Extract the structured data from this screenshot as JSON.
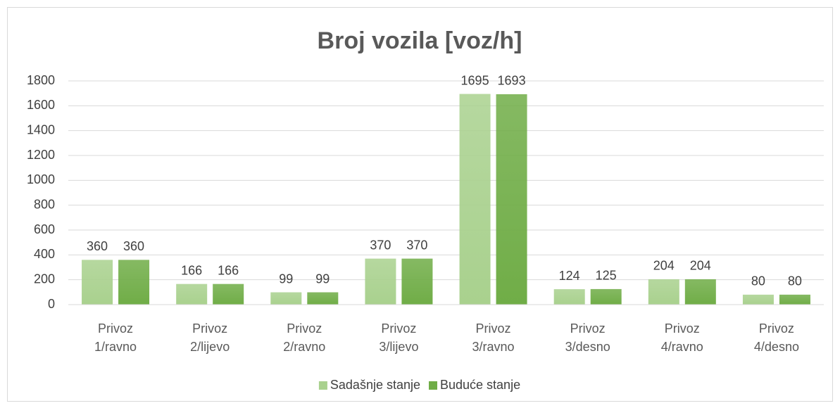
{
  "chart_data": {
    "type": "bar",
    "title": "Broj vozila [voz/h]",
    "categories": [
      "Privoz 1/ravno",
      "Privoz 2/lijevo",
      "Privoz 2/ravno",
      "Privoz 3/lijevo",
      "Privoz 3/ravno",
      "Privoz 3/desno",
      "Privoz 4/ravno",
      "Privoz 4/desno"
    ],
    "series": [
      {
        "name": "Sadašnje stanje",
        "color": "#a9d18e",
        "values": [
          360,
          166,
          99,
          370,
          1695,
          124,
          204,
          80
        ]
      },
      {
        "name": "Buduće stanje",
        "color": "#70ad47",
        "values": [
          360,
          166,
          99,
          370,
          1693,
          125,
          204,
          80
        ]
      }
    ],
    "ylim": [
      0,
      1800
    ],
    "yticks": [
      0,
      200,
      400,
      600,
      800,
      1000,
      1200,
      1400,
      1600,
      1800
    ],
    "grid": true,
    "legend": "bottom"
  }
}
